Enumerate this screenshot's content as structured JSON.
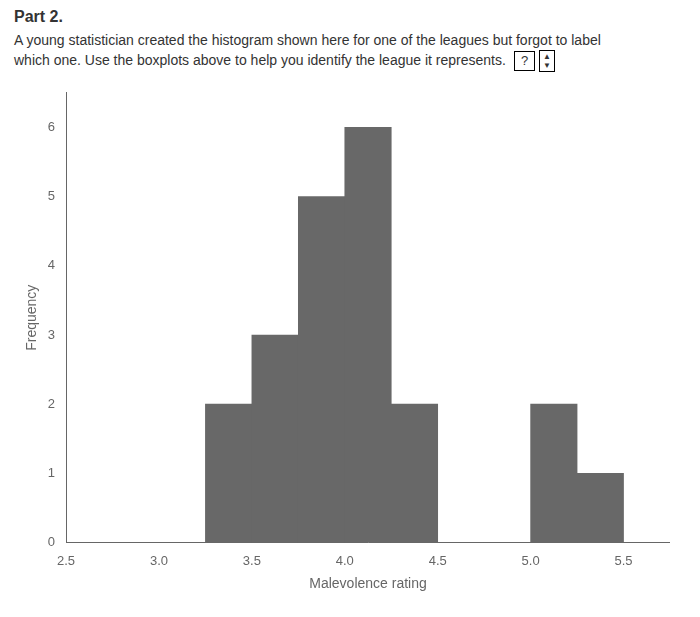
{
  "chart_data": {
    "type": "histogram",
    "title": "Part 2.",
    "subtitle": [
      "A young statistician created the histogram shown here for one of the leagues but forgot to label",
      "which one. Use the boxplots above to help you identify the league it represents."
    ],
    "annotations": [
      "?",
      "▲\n▼"
    ],
    "xlabel": "Malevolence rating",
    "ylabel": "Frequency",
    "bins": [
      3.25,
      3.5,
      3.75,
      4.0,
      4.25,
      4.5,
      4.75,
      5.0,
      5.25,
      5.5
    ],
    "values": [
      2,
      3,
      5,
      6,
      2,
      0,
      0,
      2,
      1
    ],
    "color": "#686868",
    "xlim": [
      2.5,
      5.75
    ],
    "xticks": [
      2.5,
      {
        "value": 3,
        "label": "3.0"
      },
      3.5,
      {
        "value": 4,
        "label": "4.0"
      },
      4.5,
      {
        "value": 5,
        "label": "5.0"
      },
      5.5
    ],
    "ylim": [
      0,
      6.5
    ],
    "yticks": [
      0,
      1,
      2,
      3,
      4,
      5,
      6
    ],
    "grid": false
  }
}
